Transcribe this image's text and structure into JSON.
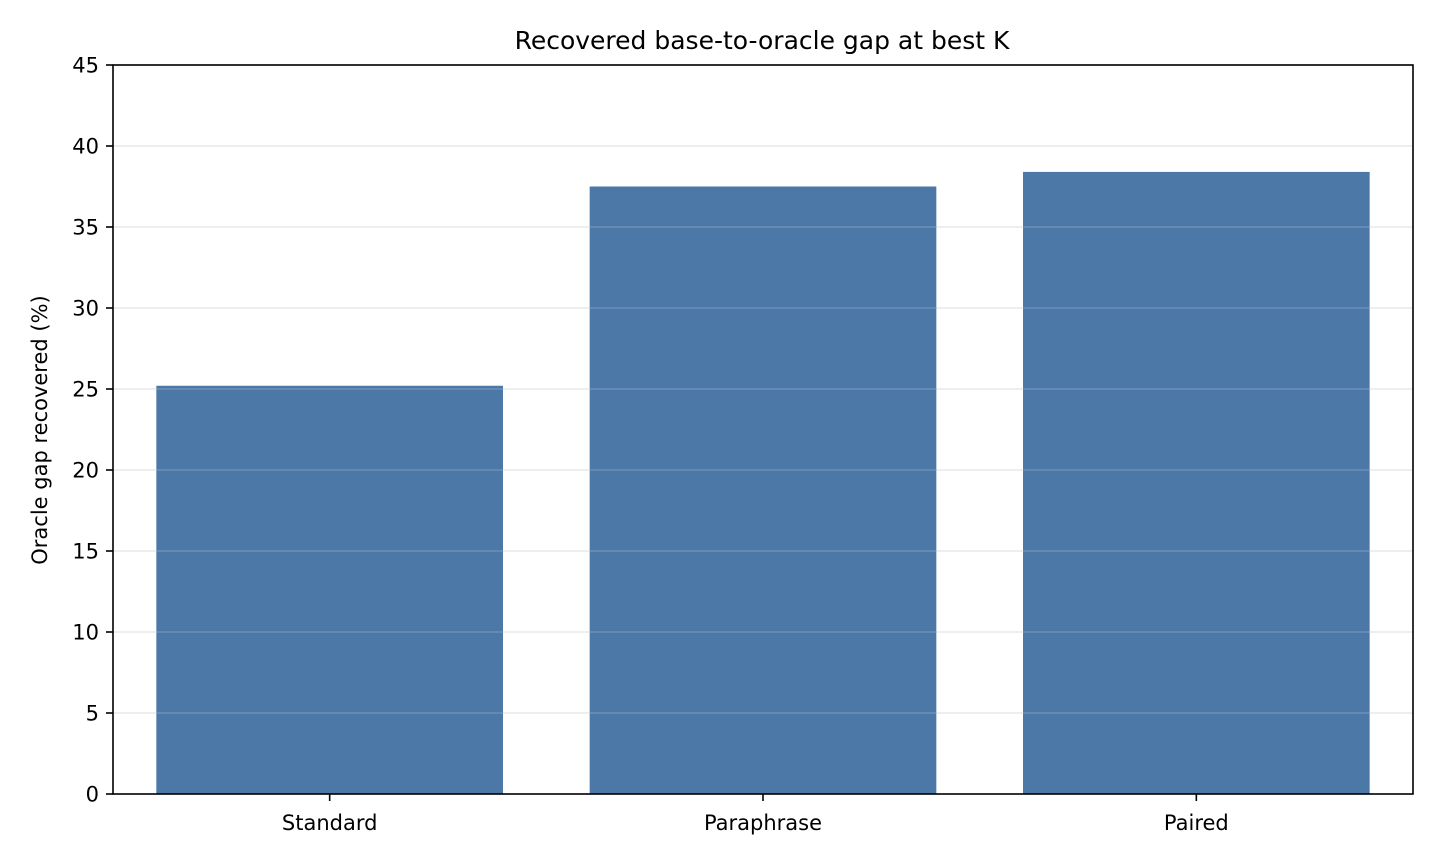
{
  "chart_data": {
    "type": "bar",
    "title": "Recovered base-to-oracle gap at best K",
    "xlabel": "",
    "ylabel": "Oracle gap recovered (%)",
    "categories": [
      "Standard",
      "Paraphrase",
      "Paired"
    ],
    "values": [
      25.2,
      37.5,
      38.4
    ],
    "ylim": [
      0,
      45
    ],
    "yticks": [
      0,
      5,
      10,
      15,
      20,
      25,
      30,
      35,
      40,
      45
    ],
    "grid": "horizontal",
    "legend": "none",
    "colors": {
      "bar": "#4c78a8",
      "grid": "#e6e6e6",
      "axis": "#000000"
    }
  }
}
